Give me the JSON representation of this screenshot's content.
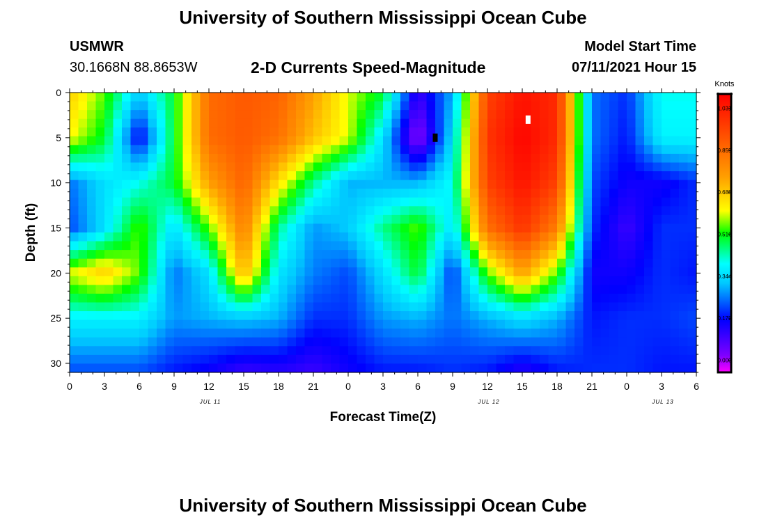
{
  "header": {
    "title": "University of Southern Mississippi Ocean Cube",
    "station": "USMWR",
    "coords": "30.1668N  88.8653W",
    "subtitle": "2-D Currents Speed-Magnitude",
    "model_label": "Model Start Time",
    "model_time": "07/11/2021 Hour 15"
  },
  "footer": {
    "title": "University of Southern Mississippi Ocean Cube"
  },
  "chart_data": {
    "type": "heatmap",
    "xlabel": "Forecast Time(Z)",
    "ylabel": "Depth (ft)",
    "x_tick_labels": [
      "0",
      "3",
      "6",
      "9",
      "12",
      "15",
      "18",
      "21",
      "0",
      "3",
      "6",
      "9",
      "12",
      "15",
      "18",
      "21",
      "0",
      "3",
      "6"
    ],
    "x_range_hours": [
      0,
      54
    ],
    "date_labels": [
      {
        "hour": 12,
        "label": "JUL 11"
      },
      {
        "hour": 36,
        "label": "JUL 12"
      },
      {
        "hour": 51,
        "label": "JUL 13"
      }
    ],
    "y_ticks": [
      0,
      5,
      10,
      15,
      20,
      25,
      30
    ],
    "ylim": [
      0,
      31
    ],
    "y_inverted": true,
    "colorbar": {
      "label": "Knots",
      "ticks": [
        "0.000",
        "0.172",
        "0.344",
        "0.516",
        "0.688",
        "0.859",
        "1.031"
      ],
      "range": [
        -0.05,
        1.09
      ]
    },
    "markers": [
      {
        "type": "min",
        "hour": 31.5,
        "depth": 5,
        "color": "#000000"
      },
      {
        "type": "max",
        "hour": 39.5,
        "depth": 3,
        "color": "#ffffff"
      }
    ],
    "field_hours": [
      0,
      3,
      6,
      9,
      12,
      15,
      18,
      21,
      24,
      27,
      30,
      33,
      36,
      39,
      42,
      45,
      48,
      51,
      54
    ],
    "field_depths": [
      0,
      5,
      10,
      15,
      20,
      25,
      31
    ],
    "field_values": [
      [
        0.68,
        0.55,
        0.32,
        0.5,
        0.86,
        0.9,
        0.88,
        0.75,
        0.6,
        0.5,
        0.1,
        0.3,
        0.95,
        1.05,
        1.0,
        0.25,
        0.2,
        0.4,
        0.4
      ],
      [
        0.62,
        0.5,
        0.15,
        0.5,
        0.86,
        0.9,
        0.85,
        0.7,
        0.6,
        0.35,
        0.0,
        0.35,
        0.98,
        1.08,
        1.0,
        0.25,
        0.18,
        0.38,
        0.38
      ],
      [
        0.25,
        0.35,
        0.4,
        0.5,
        0.75,
        0.88,
        0.65,
        0.45,
        0.3,
        0.3,
        0.3,
        0.4,
        0.95,
        1.05,
        0.95,
        0.22,
        0.15,
        0.15,
        0.2
      ],
      [
        0.22,
        0.35,
        0.55,
        0.35,
        0.55,
        0.82,
        0.45,
        0.28,
        0.32,
        0.45,
        0.55,
        0.35,
        0.85,
        0.98,
        0.82,
        0.2,
        0.1,
        0.2,
        0.2
      ],
      [
        0.6,
        0.68,
        0.55,
        0.25,
        0.35,
        0.72,
        0.36,
        0.26,
        0.22,
        0.35,
        0.5,
        0.2,
        0.55,
        0.75,
        0.55,
        0.15,
        0.15,
        0.2,
        0.18
      ],
      [
        0.38,
        0.38,
        0.38,
        0.28,
        0.3,
        0.32,
        0.3,
        0.2,
        0.2,
        0.28,
        0.3,
        0.25,
        0.3,
        0.35,
        0.3,
        0.18,
        0.2,
        0.2,
        0.22
      ],
      [
        0.22,
        0.22,
        0.22,
        0.18,
        0.15,
        0.1,
        0.12,
        0.1,
        0.15,
        0.18,
        0.18,
        0.2,
        0.18,
        0.12,
        0.18,
        0.2,
        0.2,
        0.18,
        0.18
      ]
    ]
  }
}
